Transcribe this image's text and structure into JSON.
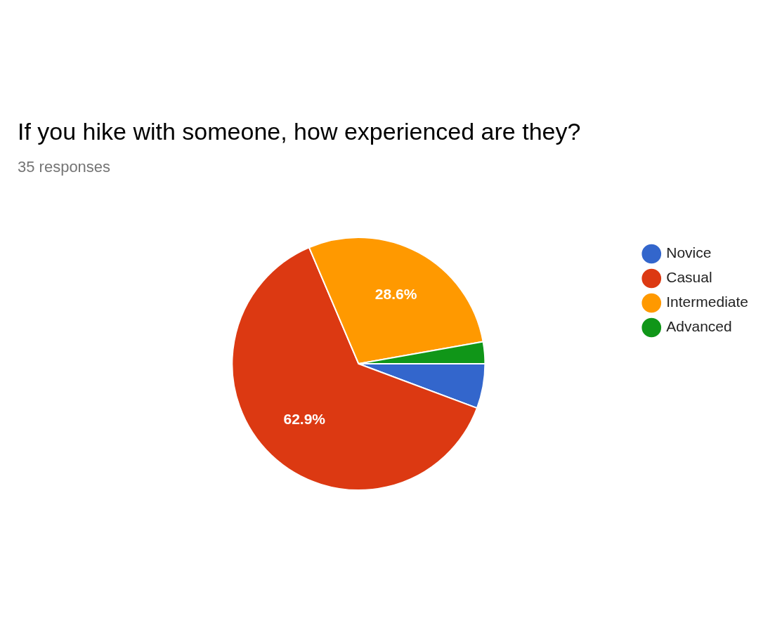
{
  "chart_data": {
    "type": "pie",
    "title": "If you hike with someone, how experienced are they?",
    "subtitle": "35 responses",
    "categories": [
      "Novice",
      "Casual",
      "Intermediate",
      "Advanced"
    ],
    "values": [
      5.7,
      62.9,
      28.6,
      2.8
    ],
    "colors": [
      "#3366cc",
      "#dc3912",
      "#ff9900",
      "#109618"
    ],
    "value_labels": [
      null,
      "62.9%",
      "28.6%",
      null
    ],
    "legend": "right"
  }
}
